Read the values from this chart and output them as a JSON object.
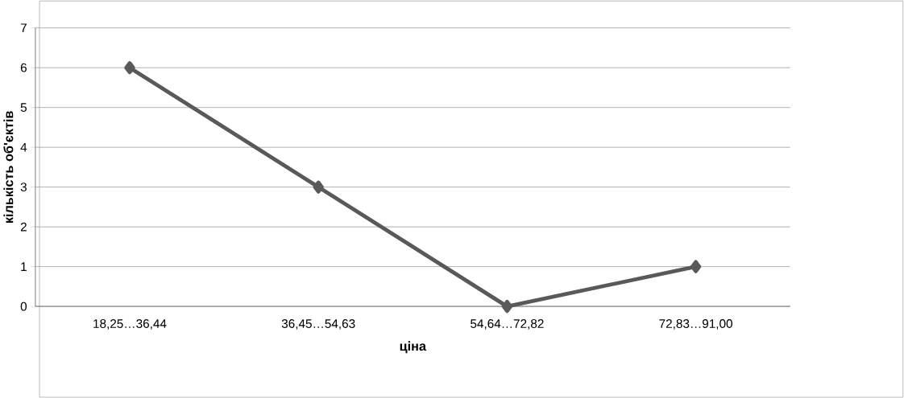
{
  "chart_data": {
    "type": "line",
    "xlabel": "ціна",
    "ylabel": "кількість об'єктів",
    "categories": [
      "18,25…36,44",
      "36,45…54,63",
      "54,64…72,82",
      "72,83…91,00"
    ],
    "values": [
      6,
      3,
      0,
      1
    ],
    "color": "#595959",
    "ylim": [
      0,
      7
    ],
    "yticks": [
      0,
      1,
      2,
      3,
      4,
      5,
      6,
      7
    ],
    "grid": "y",
    "marker": "diamond",
    "line_style": "solid"
  }
}
